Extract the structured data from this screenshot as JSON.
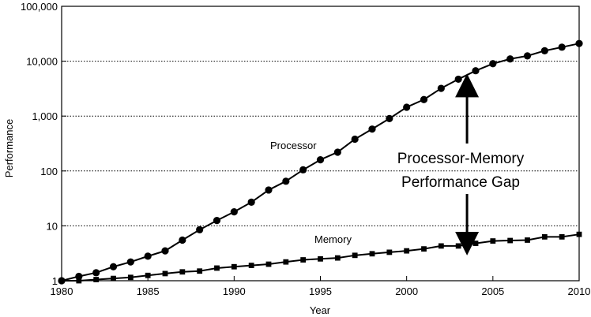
{
  "chart_data": {
    "type": "line",
    "title": "",
    "xlabel": "Year",
    "ylabel": "Performance",
    "xlim": [
      1980,
      2010
    ],
    "ylim": [
      1,
      100000
    ],
    "yscale": "log",
    "grid": "horizontal-dotted",
    "x_ticks": [
      "1980",
      "1985",
      "1990",
      "1995",
      "2000",
      "2005",
      "2010"
    ],
    "x_tick_values": [
      1980,
      1985,
      1990,
      1995,
      2000,
      2005,
      2010
    ],
    "y_ticks": [
      "1",
      "10",
      "100",
      "1,000",
      "10,000",
      "100,000"
    ],
    "y_tick_values": [
      1,
      10,
      100,
      1000,
      10000,
      100000
    ],
    "series": [
      {
        "name": "Processor",
        "marker": "circle",
        "x": [
          1980,
          1981,
          1982,
          1983,
          1984,
          1985,
          1986,
          1987,
          1988,
          1989,
          1990,
          1991,
          1992,
          1993,
          1994,
          1995,
          1996,
          1997,
          1998,
          1999,
          2000,
          2001,
          2002,
          2003,
          2004,
          2005,
          2006,
          2007,
          2008,
          2009,
          2010
        ],
        "values": [
          1,
          1.2,
          1.4,
          1.8,
          2.2,
          2.8,
          3.5,
          5.5,
          8.5,
          12.5,
          18,
          27,
          45,
          65,
          105,
          160,
          220,
          380,
          580,
          900,
          1450,
          2000,
          3200,
          4700,
          6700,
          9000,
          11000,
          12500,
          15500,
          18000,
          21000
        ]
      },
      {
        "name": "Memory",
        "marker": "square",
        "x": [
          1980,
          1981,
          1982,
          1983,
          1984,
          1985,
          1986,
          1987,
          1988,
          1989,
          1990,
          1991,
          1992,
          1993,
          1994,
          1995,
          1996,
          1997,
          1998,
          1999,
          2000,
          2001,
          2002,
          2003,
          2004,
          2005,
          2006,
          2007,
          2008,
          2009,
          2010
        ],
        "values": [
          1,
          1,
          1.05,
          1.1,
          1.15,
          1.25,
          1.35,
          1.45,
          1.5,
          1.7,
          1.8,
          1.9,
          2.0,
          2.2,
          2.4,
          2.5,
          2.6,
          2.9,
          3.1,
          3.3,
          3.5,
          3.8,
          4.3,
          4.3,
          4.8,
          5.3,
          5.4,
          5.5,
          6.3,
          6.3,
          7.0
        ]
      }
    ],
    "annotation": {
      "lines": [
        "Processor-Memory",
        "Performance Gap"
      ],
      "arrow_year": 2003.5
    },
    "colors": {
      "line": "#000000",
      "grid": "#000000",
      "background": "#ffffff"
    }
  }
}
